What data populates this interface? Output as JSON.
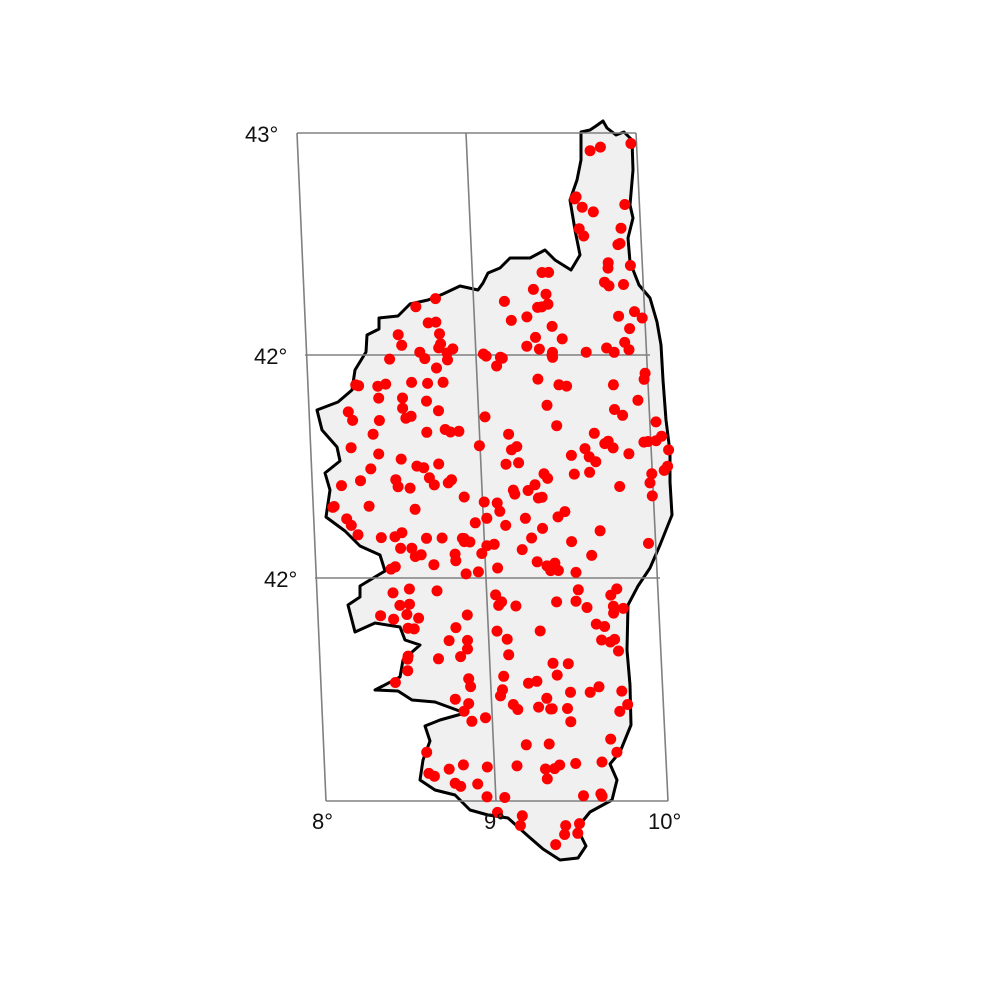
{
  "map": {
    "lat_labels": [
      "43°",
      "42°",
      "42°"
    ],
    "lon_labels": [
      "8°",
      "9°",
      "10°"
    ],
    "colors": {
      "land": "#f0f0f0",
      "coast": "#000000",
      "grid": "#808080",
      "points": "#ff0000",
      "background": "#ffffff"
    },
    "point_count": 315
  }
}
